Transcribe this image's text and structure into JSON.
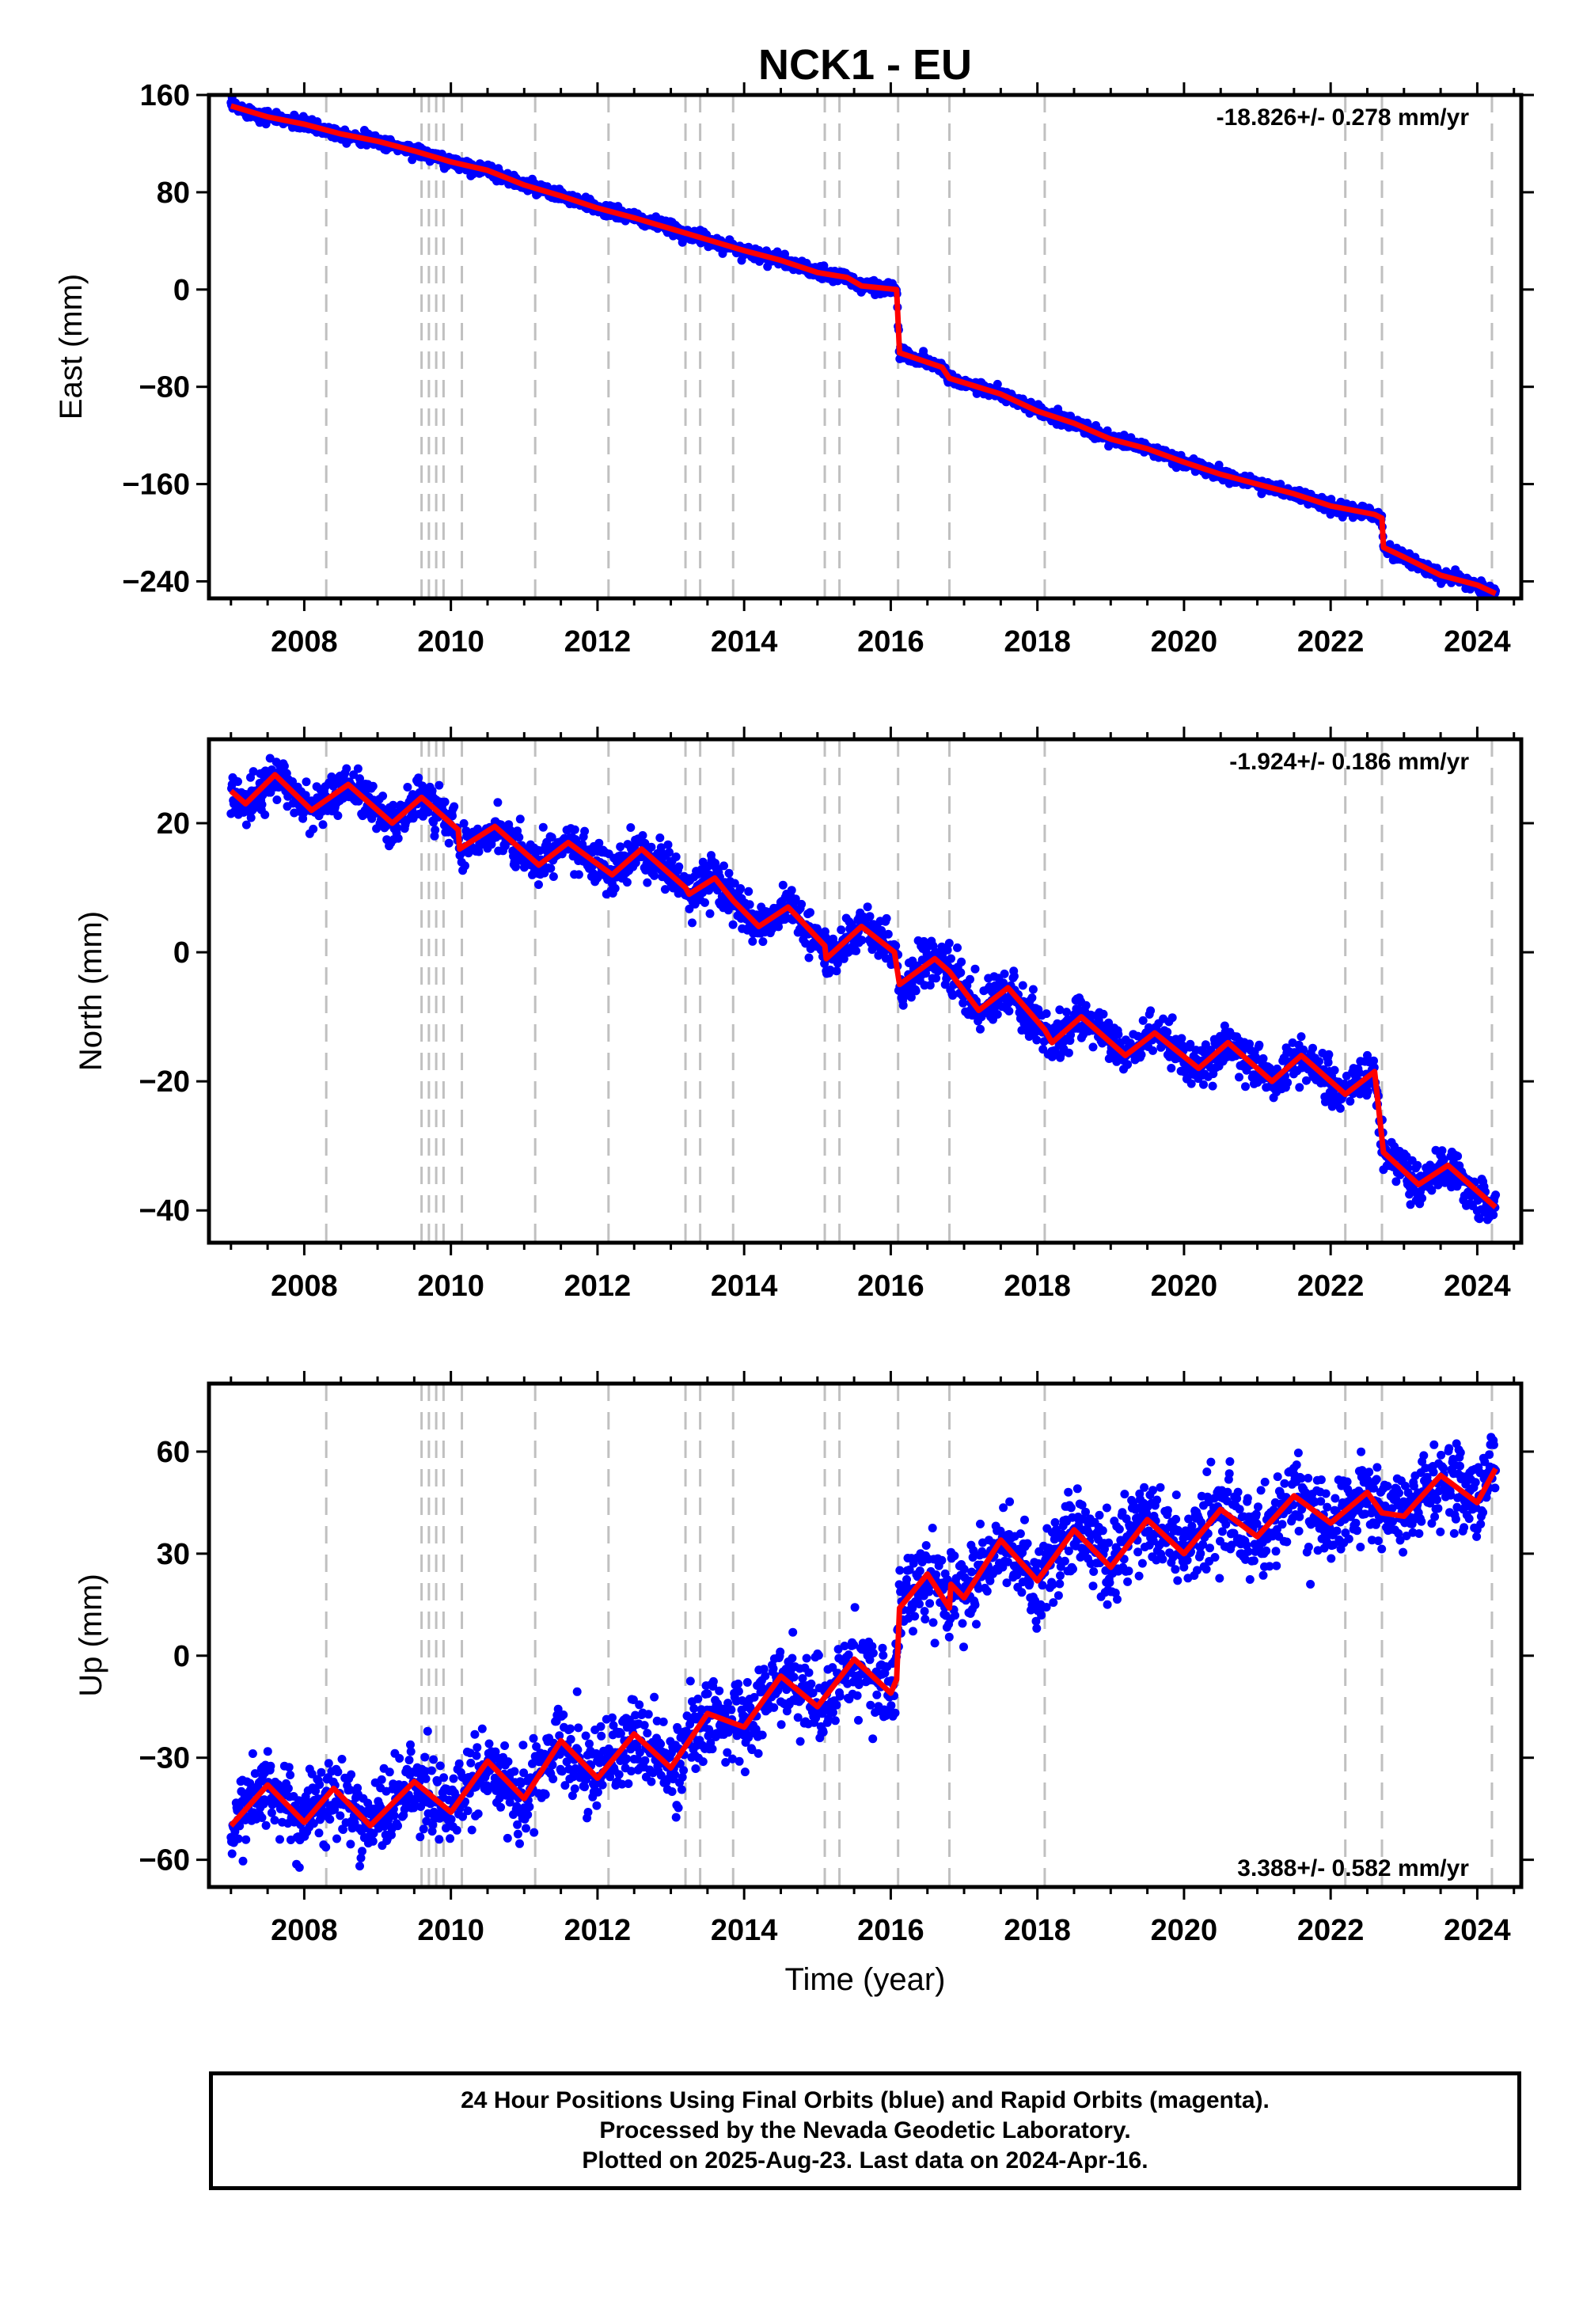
{
  "title": "NCK1 - EU",
  "colors": {
    "data": "#0000ff",
    "model": "#ff0000",
    "breaks": "#c0c0c0",
    "axis": "#000000"
  },
  "footer": {
    "line1": "24 Hour Positions Using Final Orbits (blue) and Rapid Orbits (magenta).",
    "line2": "Processed by the Nevada Geodetic Laboratory.",
    "line3": "Plotted on 2025-Aug-23. Last data on 2024-Apr-16."
  },
  "chart_data": [
    {
      "type": "scatter",
      "component": "East",
      "ylabel": "East (mm)",
      "xlabel": "",
      "xlim": [
        2006.7,
        2024.6
      ],
      "ylim": [
        -254,
        160
      ],
      "yticks": [
        -240,
        -160,
        -80,
        0,
        80,
        160
      ],
      "xticks": [
        2008,
        2010,
        2012,
        2014,
        2016,
        2018,
        2020,
        2022,
        2024
      ],
      "rate": "-18.826+/- 0.278 mm/yr",
      "rate_position": "top-right",
      "equipment_breaks": [
        2008.3,
        2009.6,
        2009.7,
        2009.8,
        2009.9,
        2010.15,
        2011.15,
        2012.15,
        2013.2,
        2013.4,
        2013.85,
        2015.1,
        2015.3,
        2016.1,
        2016.8,
        2018.1,
        2022.2,
        2022.7,
        2024.2
      ],
      "model_series": {
        "name": "model",
        "points": [
          [
            2007.0,
            151
          ],
          [
            2007.5,
            142
          ],
          [
            2008.0,
            136
          ],
          [
            2008.5,
            128
          ],
          [
            2009.0,
            122
          ],
          [
            2009.5,
            114
          ],
          [
            2010.0,
            105
          ],
          [
            2010.5,
            98
          ],
          [
            2011.0,
            86
          ],
          [
            2011.5,
            77
          ],
          [
            2012.0,
            67
          ],
          [
            2012.5,
            59
          ],
          [
            2013.0,
            50
          ],
          [
            2013.5,
            41
          ],
          [
            2014.0,
            32
          ],
          [
            2014.5,
            24
          ],
          [
            2015.0,
            14
          ],
          [
            2015.4,
            10
          ],
          [
            2015.6,
            3
          ],
          [
            2016.08,
            0
          ],
          [
            2016.12,
            -52
          ],
          [
            2016.7,
            -64
          ],
          [
            2016.8,
            -73
          ],
          [
            2017.5,
            -86
          ],
          [
            2018.0,
            -100
          ],
          [
            2018.5,
            -110
          ],
          [
            2019.0,
            -123
          ],
          [
            2019.5,
            -131
          ],
          [
            2020.0,
            -142
          ],
          [
            2020.5,
            -152
          ],
          [
            2021.0,
            -160
          ],
          [
            2021.5,
            -168
          ],
          [
            2022.0,
            -178
          ],
          [
            2022.6,
            -185
          ],
          [
            2022.7,
            -188
          ],
          [
            2022.72,
            -212
          ],
          [
            2023.0,
            -220
          ],
          [
            2023.5,
            -235
          ],
          [
            2024.0,
            -243
          ],
          [
            2024.25,
            -250
          ]
        ]
      }
    },
    {
      "type": "scatter",
      "component": "North",
      "ylabel": "North (mm)",
      "xlabel": "",
      "xlim": [
        2006.7,
        2024.6
      ],
      "ylim": [
        -45,
        33
      ],
      "yticks": [
        -40,
        -20,
        0,
        20
      ],
      "xticks": [
        2008,
        2010,
        2012,
        2014,
        2016,
        2018,
        2020,
        2022,
        2024
      ],
      "rate": "-1.924+/- 0.186 mm/yr",
      "rate_position": "top-right",
      "equipment_breaks": [
        2008.3,
        2009.6,
        2009.7,
        2009.8,
        2009.9,
        2010.15,
        2011.15,
        2012.15,
        2013.2,
        2013.4,
        2013.85,
        2015.1,
        2015.3,
        2016.1,
        2016.8,
        2018.1,
        2022.2,
        2022.7,
        2024.2
      ],
      "model_series": {
        "name": "model",
        "points": [
          [
            2007.0,
            25
          ],
          [
            2007.2,
            23
          ],
          [
            2007.6,
            27.5
          ],
          [
            2008.1,
            22
          ],
          [
            2008.6,
            26
          ],
          [
            2009.2,
            20
          ],
          [
            2009.6,
            24
          ],
          [
            2010.1,
            19
          ],
          [
            2010.12,
            16
          ],
          [
            2010.6,
            19.5
          ],
          [
            2011.2,
            13.5
          ],
          [
            2011.6,
            17
          ],
          [
            2012.2,
            12
          ],
          [
            2012.6,
            16
          ],
          [
            2013.2,
            10
          ],
          [
            2013.25,
            9
          ],
          [
            2013.6,
            11.5
          ],
          [
            2013.85,
            8
          ],
          [
            2014.2,
            4
          ],
          [
            2014.6,
            7
          ],
          [
            2015.1,
            1
          ],
          [
            2015.12,
            -1
          ],
          [
            2015.6,
            4
          ],
          [
            2016.05,
            0
          ],
          [
            2016.12,
            -5
          ],
          [
            2016.6,
            -1
          ],
          [
            2016.8,
            -3
          ],
          [
            2017.2,
            -9
          ],
          [
            2017.6,
            -5.5
          ],
          [
            2018.1,
            -12
          ],
          [
            2018.2,
            -14
          ],
          [
            2018.6,
            -10
          ],
          [
            2019.2,
            -16
          ],
          [
            2019.6,
            -12.5
          ],
          [
            2020.2,
            -18
          ],
          [
            2020.6,
            -14
          ],
          [
            2021.2,
            -20
          ],
          [
            2021.6,
            -16
          ],
          [
            2022.2,
            -22
          ],
          [
            2022.6,
            -18.5
          ],
          [
            2022.72,
            -31
          ],
          [
            2023.2,
            -36
          ],
          [
            2023.6,
            -33
          ],
          [
            2024.0,
            -37
          ],
          [
            2024.25,
            -39.5
          ]
        ]
      }
    },
    {
      "type": "scatter",
      "component": "Up",
      "ylabel": "Up (mm)",
      "xlabel": "Time (year)",
      "xlim": [
        2006.7,
        2024.6
      ],
      "ylim": [
        -68,
        80
      ],
      "yticks": [
        -60,
        -30,
        0,
        30,
        60
      ],
      "xticks": [
        2008,
        2010,
        2012,
        2014,
        2016,
        2018,
        2020,
        2022,
        2024
      ],
      "rate": "3.388+/- 0.582 mm/yr",
      "rate_position": "bottom-right",
      "equipment_breaks": [
        2008.3,
        2009.6,
        2009.7,
        2009.8,
        2009.9,
        2010.15,
        2011.15,
        2012.15,
        2013.2,
        2013.4,
        2013.85,
        2015.1,
        2015.3,
        2016.1,
        2016.8,
        2018.1,
        2022.2,
        2022.7,
        2024.2
      ],
      "model_series": {
        "name": "model",
        "points": [
          [
            2007.0,
            -50
          ],
          [
            2007.5,
            -38
          ],
          [
            2008.0,
            -49
          ],
          [
            2008.4,
            -39
          ],
          [
            2008.9,
            -50
          ],
          [
            2009.5,
            -37
          ],
          [
            2010.0,
            -46
          ],
          [
            2010.5,
            -31
          ],
          [
            2011.0,
            -42
          ],
          [
            2011.5,
            -25
          ],
          [
            2012.0,
            -36
          ],
          [
            2012.5,
            -23
          ],
          [
            2013.0,
            -33
          ],
          [
            2013.5,
            -17
          ],
          [
            2014.0,
            -21
          ],
          [
            2014.5,
            -6
          ],
          [
            2015.0,
            -15
          ],
          [
            2015.5,
            -1
          ],
          [
            2016.0,
            -11
          ],
          [
            2016.08,
            -7
          ],
          [
            2016.12,
            14
          ],
          [
            2016.5,
            24
          ],
          [
            2016.8,
            14
          ],
          [
            2016.82,
            21
          ],
          [
            2017.0,
            17
          ],
          [
            2017.5,
            34
          ],
          [
            2018.0,
            22
          ],
          [
            2018.5,
            37
          ],
          [
            2019.0,
            26
          ],
          [
            2019.5,
            40
          ],
          [
            2020.0,
            30
          ],
          [
            2020.5,
            43
          ],
          [
            2021.0,
            35
          ],
          [
            2021.5,
            47
          ],
          [
            2022.0,
            39
          ],
          [
            2022.5,
            48
          ],
          [
            2022.7,
            42
          ],
          [
            2023.0,
            41
          ],
          [
            2023.5,
            53
          ],
          [
            2024.0,
            45
          ],
          [
            2024.25,
            55
          ]
        ]
      }
    }
  ]
}
